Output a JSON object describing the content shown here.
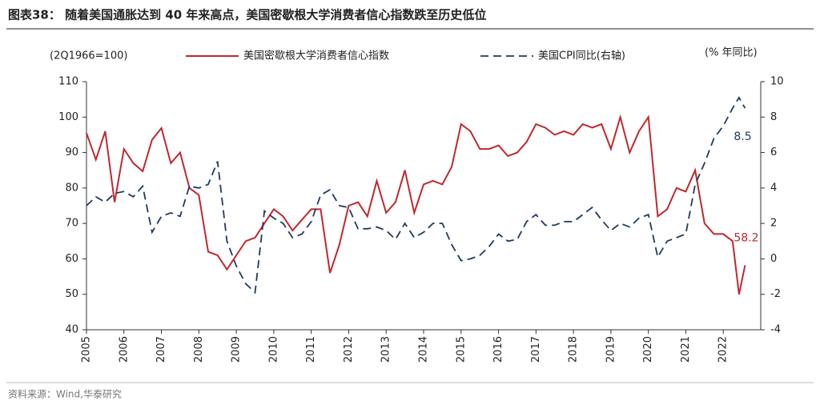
{
  "chart_data": {
    "type": "line",
    "title": "图表38：  随着美国通胀达到 40 年来高点，美国密歇根大学消费者信心指数跌至历史低位",
    "y_label": "(2Q1966=100)",
    "y2_label": "(% 年同比)",
    "source": "资料来源：Wind,华泰研究",
    "x": [
      2005,
      2005.25,
      2005.5,
      2005.75,
      2006,
      2006.25,
      2006.5,
      2006.75,
      2007,
      2007.25,
      2007.5,
      2007.75,
      2008,
      2008.25,
      2008.5,
      2008.75,
      2009,
      2009.25,
      2009.5,
      2009.75,
      2010,
      2010.25,
      2010.5,
      2010.75,
      2011,
      2011.25,
      2011.5,
      2011.75,
      2012,
      2012.25,
      2012.5,
      2012.75,
      2013,
      2013.25,
      2013.5,
      2013.75,
      2014,
      2014.25,
      2014.5,
      2014.75,
      2015,
      2015.25,
      2015.5,
      2015.75,
      2016,
      2016.25,
      2016.5,
      2016.75,
      2017,
      2017.25,
      2017.5,
      2017.75,
      2018,
      2018.25,
      2018.5,
      2018.75,
      2019,
      2019.25,
      2019.5,
      2019.75,
      2020,
      2020.25,
      2020.5,
      2020.75,
      2021,
      2021.25,
      2021.5,
      2021.75,
      2022,
      2022.25,
      2022.42,
      2022.58
    ],
    "xlim": [
      2005,
      2023
    ],
    "xticks": [
      2005,
      2006,
      2007,
      2008,
      2009,
      2010,
      2011,
      2012,
      2013,
      2014,
      2015,
      2016,
      2017,
      2018,
      2019,
      2020,
      2021,
      2022
    ],
    "ylim": [
      40,
      110
    ],
    "yticks": [
      40,
      50,
      60,
      70,
      80,
      90,
      100,
      110
    ],
    "y2lim": [
      -4,
      10
    ],
    "y2ticks": [
      -4,
      -2,
      0,
      2,
      4,
      6,
      8,
      10
    ],
    "series": [
      {
        "name": "美国密歇根大学消费者信心指数",
        "color": "#c0282d",
        "axis": "y",
        "values": [
          95.5,
          88,
          96,
          76,
          91,
          87,
          84.7,
          93.6,
          96.9,
          87,
          90,
          80,
          78,
          62,
          61,
          57,
          61,
          65,
          66,
          70,
          74,
          72,
          68,
          71,
          74,
          74,
          56,
          64,
          75,
          76,
          72,
          82,
          73,
          76,
          85,
          73,
          81,
          82,
          81,
          86,
          98,
          96,
          91,
          91,
          92,
          89,
          90,
          93,
          98,
          97,
          95,
          96,
          95,
          98,
          97,
          98,
          91,
          100,
          90,
          96,
          100,
          72,
          74,
          80,
          79,
          85,
          70,
          67,
          67,
          65,
          50,
          58.2
        ]
      },
      {
        "name": "美国CPI同比(右轴)",
        "color": "#1f3a5f",
        "axis": "y2",
        "dash": true,
        "values": [
          3.0,
          3.5,
          3.2,
          3.7,
          3.8,
          3.5,
          4.1,
          1.5,
          2.4,
          2.6,
          2.4,
          4.1,
          4.0,
          4.2,
          5.5,
          1.0,
          -0.4,
          -1.4,
          -1.9,
          2.7,
          2.3,
          2.0,
          1.2,
          1.4,
          2.1,
          3.6,
          3.9,
          3.0,
          2.9,
          1.7,
          1.7,
          1.8,
          1.6,
          1.1,
          2.0,
          1.2,
          1.5,
          2.0,
          2.0,
          0.8,
          -0.1,
          0.0,
          0.2,
          0.7,
          1.4,
          1.0,
          1.1,
          2.1,
          2.5,
          1.9,
          1.9,
          2.1,
          2.1,
          2.5,
          2.9,
          2.2,
          1.6,
          2.0,
          1.8,
          2.3,
          2.5,
          0.1,
          1.0,
          1.2,
          1.4,
          4.2,
          5.4,
          6.8,
          7.5,
          8.5,
          9.1,
          8.5
        ]
      }
    ],
    "annotations": [
      "58.2",
      "8.5"
    ]
  }
}
